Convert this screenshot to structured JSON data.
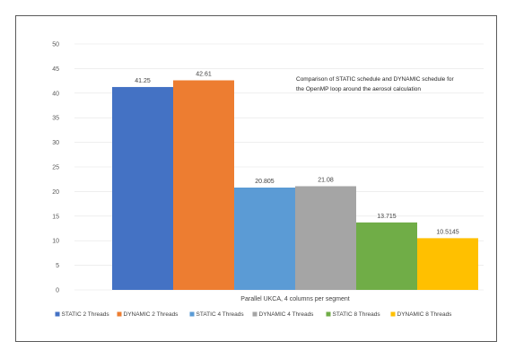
{
  "chart_data": {
    "type": "bar",
    "title": "",
    "xlabel": "Parallel UKCA, 4 columns per segment",
    "ylabel": "",
    "ylim": [
      0,
      50
    ],
    "yticks": [
      "0",
      "5",
      "10",
      "15",
      "20",
      "25",
      "30",
      "35",
      "40",
      "45",
      "50"
    ],
    "grid": true,
    "legend_position": "bottom",
    "annotation": [
      "Comparison of STATIC schedule and DYNAMIC schedule for",
      "the OpenMP loop around the aerosol calculation"
    ],
    "series": [
      {
        "name": "STATIC 2 Threads",
        "value": 41.25,
        "label": "41.25",
        "color": "#4472c4"
      },
      {
        "name": "DYNAMIC 2 Threads",
        "value": 42.61,
        "label": "42.61",
        "color": "#ed7d31"
      },
      {
        "name": "STATIC 4 Threads",
        "value": 20.805,
        "label": "20.805",
        "color": "#5b9bd5"
      },
      {
        "name": "DYNAMIC 4 Threads",
        "value": 21.08,
        "label": "21.08",
        "color": "#a5a5a5"
      },
      {
        "name": "STATIC 8 Threads",
        "value": 13.715,
        "label": "13.715",
        "color": "#70ad47"
      },
      {
        "name": "DYNAMIC 8 Threads",
        "value": 10.5145,
        "label": "10.5145",
        "color": "#ffc000"
      }
    ]
  }
}
